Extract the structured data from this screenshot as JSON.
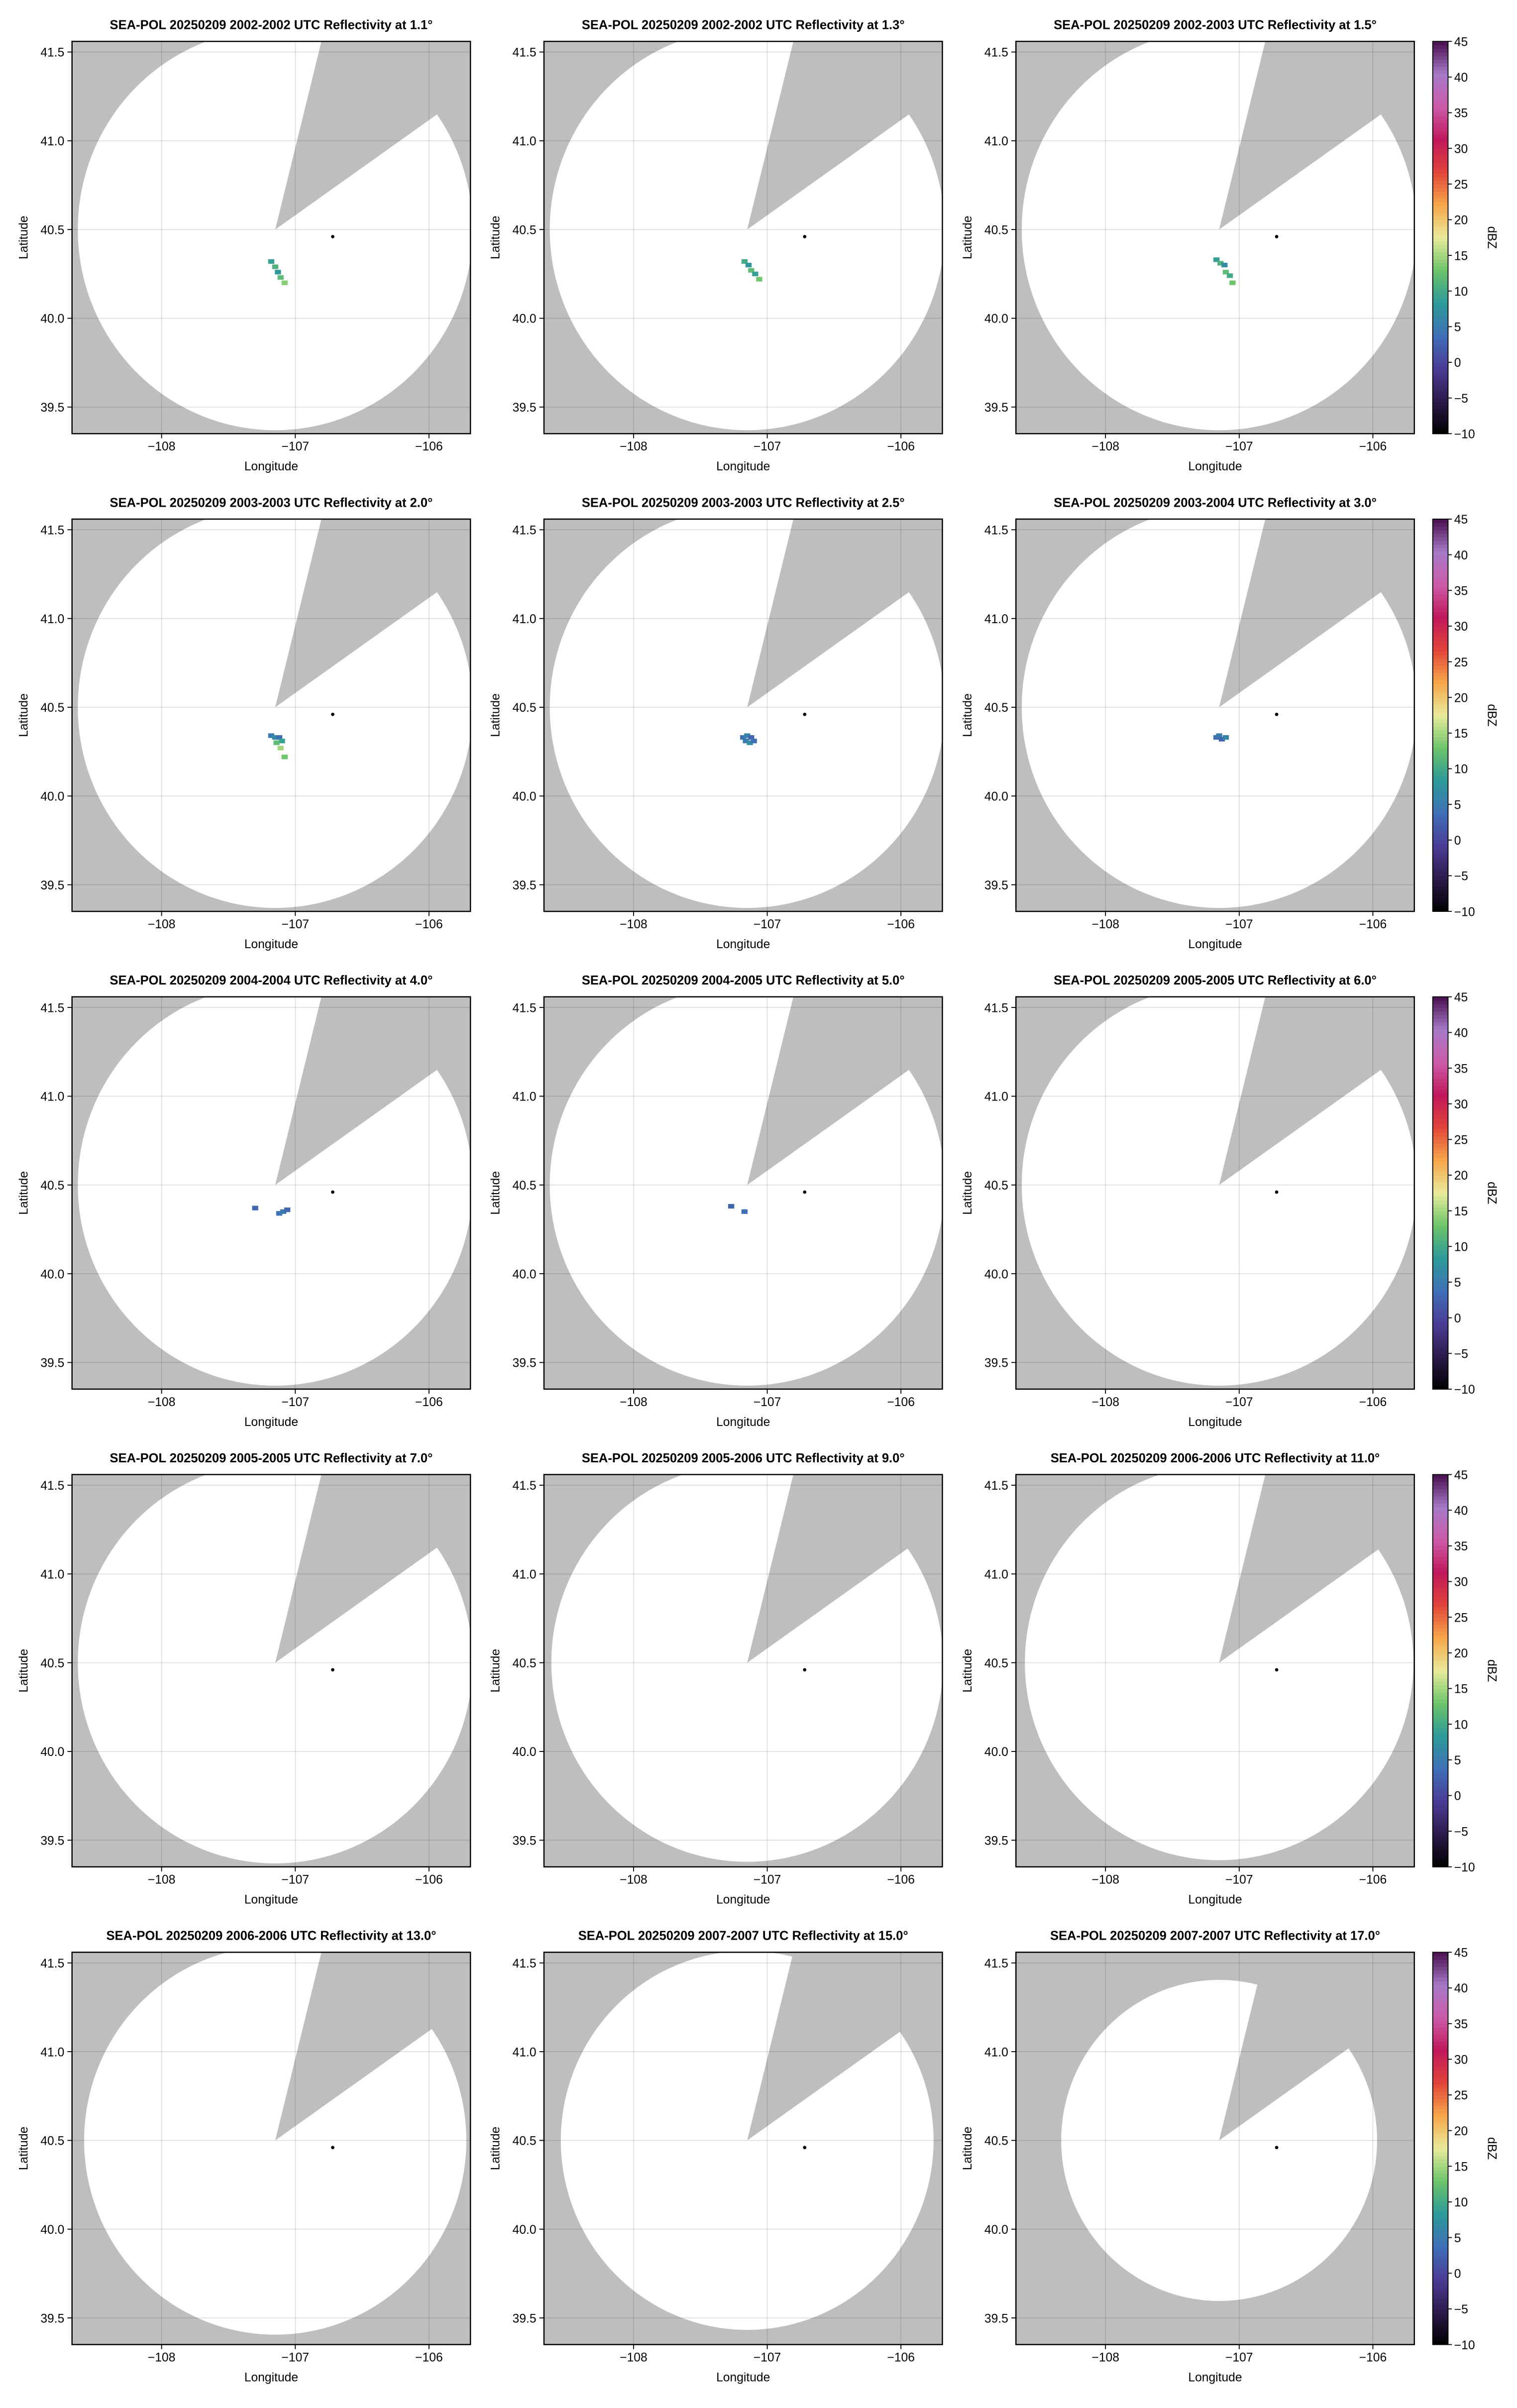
{
  "colorscale": {
    "lim": [
      -10,
      45
    ],
    "colors": [
      "#000000",
      "#2b1a4a",
      "#4b3c96",
      "#3f6fb6",
      "#2c9a9a",
      "#6cc46a",
      "#e8eb9a",
      "#f6a84a",
      "#e2453a",
      "#c0185a",
      "#cc5aa8",
      "#a77ac8",
      "#4a0f4f"
    ]
  },
  "chart_data": [
    {
      "type": "radar_ppi",
      "title": "SEA-POL 20250209 2002-2002 UTC Reflectivity at 1.1°",
      "xlabel": "Longitude",
      "ylabel": "Latitude",
      "xlim": [
        -108.67,
        -105.69
      ],
      "ylim": [
        39.35,
        41.56
      ],
      "xticks": [
        {
          "value": -108,
          "label": "−108"
        },
        {
          "value": -107,
          "label": "−107"
        },
        {
          "value": -106,
          "label": "−106"
        }
      ],
      "yticks": [
        39.5,
        {
          "value": 40,
          "label": "40.0"
        },
        40.5,
        {
          "value": 41,
          "label": "41.0"
        },
        41.5
      ],
      "grid": true,
      "background": "#bebebe",
      "coverage_color": "#ffffff",
      "radar_site": [
        -107.15,
        40.5
      ],
      "max_range_km": 125,
      "blocked_azimuth": [
        14,
        55
      ],
      "marker": [
        -106.72,
        40.46
      ],
      "echo_lon": [
        -107.18,
        -107.15,
        -107.13,
        -107.11,
        -107.08
      ],
      "echo_lat": [
        40.32,
        40.29,
        40.26,
        40.23,
        40.2
      ],
      "echo_dbz": [
        9,
        11,
        8,
        12,
        14
      ]
    },
    {
      "type": "radar_ppi",
      "title": "SEA-POL 20250209 2002-2002 UTC Reflectivity at 1.3°",
      "xlabel": "Longitude",
      "ylabel": "Latitude",
      "xlim": [
        -108.67,
        -105.69
      ],
      "ylim": [
        39.35,
        41.56
      ],
      "xticks": [
        {
          "value": -108,
          "label": "−108"
        },
        {
          "value": -107,
          "label": "−107"
        },
        {
          "value": -106,
          "label": "−106"
        }
      ],
      "yticks": [
        39.5,
        {
          "value": 40,
          "label": "40.0"
        },
        40.5,
        {
          "value": 41,
          "label": "41.0"
        },
        41.5
      ],
      "grid": true,
      "background": "#bebebe",
      "coverage_color": "#ffffff",
      "radar_site": [
        -107.15,
        40.5
      ],
      "max_range_km": 125,
      "blocked_azimuth": [
        14,
        55
      ],
      "marker": [
        -106.72,
        40.46
      ],
      "echo_lon": [
        -107.17,
        -107.14,
        -107.12,
        -107.09,
        -107.06
      ],
      "echo_lat": [
        40.32,
        40.3,
        40.27,
        40.25,
        40.22
      ],
      "echo_dbz": [
        10,
        8,
        12,
        9,
        13
      ]
    },
    {
      "type": "radar_ppi",
      "title": "SEA-POL 20250209 2002-2003 UTC Reflectivity at 1.5°",
      "xlabel": "Longitude",
      "ylabel": "Latitude",
      "xlim": [
        -108.67,
        -105.69
      ],
      "ylim": [
        39.35,
        41.56
      ],
      "xticks": [
        {
          "value": -108,
          "label": "−108"
        },
        {
          "value": -107,
          "label": "−107"
        },
        {
          "value": -106,
          "label": "−106"
        }
      ],
      "yticks": [
        39.5,
        {
          "value": 40,
          "label": "40.0"
        },
        40.5,
        {
          "value": 41,
          "label": "41.0"
        },
        41.5
      ],
      "grid": true,
      "background": "#bebebe",
      "coverage_color": "#ffffff",
      "radar_site": [
        -107.15,
        40.5
      ],
      "max_range_km": 125,
      "blocked_azimuth": [
        14,
        55
      ],
      "marker": [
        -106.72,
        40.46
      ],
      "echo_lon": [
        -107.17,
        -107.14,
        -107.11,
        -107.1,
        -107.07,
        -107.05
      ],
      "echo_lat": [
        40.33,
        40.31,
        40.3,
        40.26,
        40.24,
        40.2
      ],
      "echo_dbz": [
        9,
        11,
        7,
        12,
        10,
        13
      ],
      "colorbar": {
        "label": "dBZ",
        "ticks": [
          {
            "value": -10,
            "label": "−10"
          },
          {
            "value": -5,
            "label": "−5"
          },
          0,
          5,
          10,
          15,
          20,
          25,
          30,
          35,
          40,
          45
        ]
      }
    },
    {
      "type": "radar_ppi",
      "title": "SEA-POL 20250209 2003-2003 UTC Reflectivity at 2.0°",
      "xlabel": "Longitude",
      "ylabel": "Latitude",
      "xlim": [
        -108.67,
        -105.69
      ],
      "ylim": [
        39.35,
        41.56
      ],
      "xticks": [
        {
          "value": -108,
          "label": "−108"
        },
        {
          "value": -107,
          "label": "−107"
        },
        {
          "value": -106,
          "label": "−106"
        }
      ],
      "yticks": [
        39.5,
        {
          "value": 40,
          "label": "40.0"
        },
        40.5,
        {
          "value": 41,
          "label": "41.0"
        },
        41.5
      ],
      "grid": true,
      "background": "#bebebe",
      "coverage_color": "#ffffff",
      "radar_site": [
        -107.15,
        40.5
      ],
      "max_range_km": 125,
      "blocked_azimuth": [
        14,
        55
      ],
      "marker": [
        -106.72,
        40.46
      ],
      "echo_lon": [
        -107.18,
        -107.15,
        -107.12,
        -107.1,
        -107.14,
        -107.11,
        -107.08
      ],
      "echo_lat": [
        40.34,
        40.33,
        40.33,
        40.31,
        40.3,
        40.27,
        40.22
      ],
      "echo_dbz": [
        5,
        7,
        4,
        9,
        12,
        15,
        13
      ]
    },
    {
      "type": "radar_ppi",
      "title": "SEA-POL 20250209 2003-2003 UTC Reflectivity at 2.5°",
      "xlabel": "Longitude",
      "ylabel": "Latitude",
      "xlim": [
        -108.67,
        -105.69
      ],
      "ylim": [
        39.35,
        41.56
      ],
      "xticks": [
        {
          "value": -108,
          "label": "−108"
        },
        {
          "value": -107,
          "label": "−107"
        },
        {
          "value": -106,
          "label": "−106"
        }
      ],
      "yticks": [
        39.5,
        {
          "value": 40,
          "label": "40.0"
        },
        40.5,
        {
          "value": 41,
          "label": "41.0"
        },
        41.5
      ],
      "grid": true,
      "background": "#bebebe",
      "coverage_color": "#ffffff",
      "radar_site": [
        -107.15,
        40.5
      ],
      "max_range_km": 125,
      "blocked_azimuth": [
        14,
        55
      ],
      "marker": [
        -106.72,
        40.46
      ],
      "echo_lon": [
        -107.18,
        -107.15,
        -107.12,
        -107.16,
        -107.13,
        -107.1
      ],
      "echo_lat": [
        40.33,
        40.34,
        40.33,
        40.31,
        40.3,
        40.31
      ],
      "echo_dbz": [
        4,
        6,
        3,
        5,
        7,
        4
      ]
    },
    {
      "type": "radar_ppi",
      "title": "SEA-POL 20250209 2003-2004 UTC Reflectivity at 3.0°",
      "xlabel": "Longitude",
      "ylabel": "Latitude",
      "xlim": [
        -108.67,
        -105.69
      ],
      "ylim": [
        39.35,
        41.56
      ],
      "xticks": [
        {
          "value": -108,
          "label": "−108"
        },
        {
          "value": -107,
          "label": "−107"
        },
        {
          "value": -106,
          "label": "−106"
        }
      ],
      "yticks": [
        39.5,
        {
          "value": 40,
          "label": "40.0"
        },
        40.5,
        {
          "value": 41,
          "label": "41.0"
        },
        41.5
      ],
      "grid": true,
      "background": "#bebebe",
      "coverage_color": "#ffffff",
      "radar_site": [
        -107.15,
        40.5
      ],
      "max_range_km": 125,
      "blocked_azimuth": [
        14,
        55
      ],
      "marker": [
        -106.72,
        40.46
      ],
      "echo_lon": [
        -107.17,
        -107.15,
        -107.13,
        -107.1
      ],
      "echo_lat": [
        40.33,
        40.34,
        40.32,
        40.33
      ],
      "echo_dbz": [
        4,
        5,
        3,
        6
      ],
      "colorbar": {
        "label": "dBZ",
        "ticks": [
          {
            "value": -10,
            "label": "−10"
          },
          {
            "value": -5,
            "label": "−5"
          },
          0,
          5,
          10,
          15,
          20,
          25,
          30,
          35,
          40,
          45
        ]
      }
    },
    {
      "type": "radar_ppi",
      "title": "SEA-POL 20250209 2004-2004 UTC Reflectivity at 4.0°",
      "xlabel": "Longitude",
      "ylabel": "Latitude",
      "xlim": [
        -108.67,
        -105.69
      ],
      "ylim": [
        39.35,
        41.56
      ],
      "xticks": [
        {
          "value": -108,
          "label": "−108"
        },
        {
          "value": -107,
          "label": "−107"
        },
        {
          "value": -106,
          "label": "−106"
        }
      ],
      "yticks": [
        39.5,
        {
          "value": 40,
          "label": "40.0"
        },
        40.5,
        {
          "value": 41,
          "label": "41.0"
        },
        41.5
      ],
      "grid": true,
      "background": "#bebebe",
      "coverage_color": "#ffffff",
      "radar_site": [
        -107.15,
        40.5
      ],
      "max_range_km": 125,
      "blocked_azimuth": [
        14,
        55
      ],
      "marker": [
        -106.72,
        40.46
      ],
      "echo_lon": [
        -107.3,
        -107.12,
        -107.09,
        -107.06
      ],
      "echo_lat": [
        40.37,
        40.34,
        40.35,
        40.36
      ],
      "echo_dbz": [
        3,
        4,
        5,
        3
      ]
    },
    {
      "type": "radar_ppi",
      "title": "SEA-POL 20250209 2004-2005 UTC Reflectivity at 5.0°",
      "xlabel": "Longitude",
      "ylabel": "Latitude",
      "xlim": [
        -108.67,
        -105.69
      ],
      "ylim": [
        39.35,
        41.56
      ],
      "xticks": [
        {
          "value": -108,
          "label": "−108"
        },
        {
          "value": -107,
          "label": "−107"
        },
        {
          "value": -106,
          "label": "−106"
        }
      ],
      "yticks": [
        39.5,
        {
          "value": 40,
          "label": "40.0"
        },
        40.5,
        {
          "value": 41,
          "label": "41.0"
        },
        41.5
      ],
      "grid": true,
      "background": "#bebebe",
      "coverage_color": "#ffffff",
      "radar_site": [
        -107.15,
        40.5
      ],
      "max_range_km": 125,
      "blocked_azimuth": [
        14,
        55
      ],
      "marker": [
        -106.72,
        40.46
      ],
      "echo_lon": [
        -107.27,
        -107.17
      ],
      "echo_lat": [
        40.38,
        40.35
      ],
      "echo_dbz": [
        3,
        4
      ]
    },
    {
      "type": "radar_ppi",
      "title": "SEA-POL 20250209 2005-2005 UTC Reflectivity at 6.0°",
      "xlabel": "Longitude",
      "ylabel": "Latitude",
      "xlim": [
        -108.67,
        -105.69
      ],
      "ylim": [
        39.35,
        41.56
      ],
      "xticks": [
        {
          "value": -108,
          "label": "−108"
        },
        {
          "value": -107,
          "label": "−107"
        },
        {
          "value": -106,
          "label": "−106"
        }
      ],
      "yticks": [
        39.5,
        {
          "value": 40,
          "label": "40.0"
        },
        40.5,
        {
          "value": 41,
          "label": "41.0"
        },
        41.5
      ],
      "grid": true,
      "background": "#bebebe",
      "coverage_color": "#ffffff",
      "radar_site": [
        -107.15,
        40.5
      ],
      "max_range_km": 125,
      "blocked_azimuth": [
        14,
        55
      ],
      "marker": [
        -106.72,
        40.46
      ],
      "colorbar": {
        "label": "dBZ",
        "ticks": [
          {
            "value": -10,
            "label": "−10"
          },
          {
            "value": -5,
            "label": "−5"
          },
          0,
          5,
          10,
          15,
          20,
          25,
          30,
          35,
          40,
          45
        ]
      }
    },
    {
      "type": "radar_ppi",
      "title": "SEA-POL 20250209 2005-2005 UTC Reflectivity at 7.0°",
      "xlabel": "Longitude",
      "ylabel": "Latitude",
      "xlim": [
        -108.67,
        -105.69
      ],
      "ylim": [
        39.35,
        41.56
      ],
      "xticks": [
        {
          "value": -108,
          "label": "−108"
        },
        {
          "value": -107,
          "label": "−107"
        },
        {
          "value": -106,
          "label": "−106"
        }
      ],
      "yticks": [
        39.5,
        {
          "value": 40,
          "label": "40.0"
        },
        40.5,
        {
          "value": 41,
          "label": "41.0"
        },
        41.5
      ],
      "grid": true,
      "background": "#bebebe",
      "coverage_color": "#ffffff",
      "radar_site": [
        -107.15,
        40.5
      ],
      "max_range_km": 125,
      "blocked_azimuth": [
        14,
        55
      ],
      "marker": [
        -106.72,
        40.46
      ]
    },
    {
      "type": "radar_ppi",
      "title": "SEA-POL 20250209 2005-2006 UTC Reflectivity at 9.0°",
      "xlabel": "Longitude",
      "ylabel": "Latitude",
      "xlim": [
        -108.67,
        -105.69
      ],
      "ylim": [
        39.35,
        41.56
      ],
      "xticks": [
        {
          "value": -108,
          "label": "−108"
        },
        {
          "value": -107,
          "label": "−107"
        },
        {
          "value": -106,
          "label": "−106"
        }
      ],
      "yticks": [
        39.5,
        {
          "value": 40,
          "label": "40.0"
        },
        40.5,
        {
          "value": 41,
          "label": "41.0"
        },
        41.5
      ],
      "grid": true,
      "background": "#bebebe",
      "coverage_color": "#ffffff",
      "radar_site": [
        -107.15,
        40.5
      ],
      "max_range_km": 124,
      "blocked_azimuth": [
        14,
        55
      ],
      "marker": [
        -106.72,
        40.46
      ]
    },
    {
      "type": "radar_ppi",
      "title": "SEA-POL 20250209 2006-2006 UTC Reflectivity at 11.0°",
      "xlabel": "Longitude",
      "ylabel": "Latitude",
      "xlim": [
        -108.67,
        -105.69
      ],
      "ylim": [
        39.35,
        41.56
      ],
      "xticks": [
        {
          "value": -108,
          "label": "−108"
        },
        {
          "value": -107,
          "label": "−107"
        },
        {
          "value": -106,
          "label": "−106"
        }
      ],
      "yticks": [
        39.5,
        {
          "value": 40,
          "label": "40.0"
        },
        40.5,
        {
          "value": 41,
          "label": "41.0"
        },
        41.5
      ],
      "grid": true,
      "background": "#bebebe",
      "coverage_color": "#ffffff",
      "radar_site": [
        -107.15,
        40.5
      ],
      "max_range_km": 123,
      "blocked_azimuth": [
        14,
        55
      ],
      "marker": [
        -106.72,
        40.46
      ],
      "colorbar": {
        "label": "dBZ",
        "ticks": [
          {
            "value": -10,
            "label": "−10"
          },
          {
            "value": -5,
            "label": "−5"
          },
          0,
          5,
          10,
          15,
          20,
          25,
          30,
          35,
          40,
          45
        ]
      }
    },
    {
      "type": "radar_ppi",
      "title": "SEA-POL 20250209 2006-2006 UTC Reflectivity at 13.0°",
      "xlabel": "Longitude",
      "ylabel": "Latitude",
      "xlim": [
        -108.67,
        -105.69
      ],
      "ylim": [
        39.35,
        41.56
      ],
      "xticks": [
        {
          "value": -108,
          "label": "−108"
        },
        {
          "value": -107,
          "label": "−107"
        },
        {
          "value": -106,
          "label": "−106"
        }
      ],
      "yticks": [
        39.5,
        {
          "value": 40,
          "label": "40.0"
        },
        40.5,
        {
          "value": 41,
          "label": "41.0"
        },
        41.5
      ],
      "grid": true,
      "background": "#bebebe",
      "coverage_color": "#ffffff",
      "radar_site": [
        -107.15,
        40.5
      ],
      "max_range_km": 121,
      "blocked_azimuth": [
        14,
        55
      ],
      "marker": [
        -106.72,
        40.46
      ]
    },
    {
      "type": "radar_ppi",
      "title": "SEA-POL 20250209 2007-2007 UTC Reflectivity at 15.0°",
      "xlabel": "Longitude",
      "ylabel": "Latitude",
      "xlim": [
        -108.67,
        -105.69
      ],
      "ylim": [
        39.35,
        41.56
      ],
      "xticks": [
        {
          "value": -108,
          "label": "−108"
        },
        {
          "value": -107,
          "label": "−107"
        },
        {
          "value": -106,
          "label": "−106"
        }
      ],
      "yticks": [
        39.5,
        {
          "value": 40,
          "label": "40.0"
        },
        40.5,
        {
          "value": 41,
          "label": "41.0"
        },
        41.5
      ],
      "grid": true,
      "background": "#bebebe",
      "coverage_color": "#ffffff",
      "radar_site": [
        -107.15,
        40.5
      ],
      "max_range_km": 118,
      "blocked_azimuth": [
        14,
        55
      ],
      "marker": [
        -106.72,
        40.46
      ]
    },
    {
      "type": "radar_ppi",
      "title": "SEA-POL 20250209 2007-2007 UTC Reflectivity at 17.0°",
      "xlabel": "Longitude",
      "ylabel": "Latitude",
      "xlim": [
        -108.67,
        -105.69
      ],
      "ylim": [
        39.35,
        41.56
      ],
      "xticks": [
        {
          "value": -108,
          "label": "−108"
        },
        {
          "value": -107,
          "label": "−107"
        },
        {
          "value": -106,
          "label": "−106"
        }
      ],
      "yticks": [
        39.5,
        {
          "value": 40,
          "label": "40.0"
        },
        40.5,
        {
          "value": 41,
          "label": "41.0"
        },
        41.5
      ],
      "grid": true,
      "background": "#bebebe",
      "coverage_color": "#ffffff",
      "radar_site": [
        -107.15,
        40.5
      ],
      "max_range_km": 100,
      "blocked_azimuth": [
        14,
        55
      ],
      "marker": [
        -106.72,
        40.46
      ],
      "colorbar": {
        "label": "dBZ",
        "ticks": [
          {
            "value": -10,
            "label": "−10"
          },
          {
            "value": -5,
            "label": "−5"
          },
          0,
          5,
          10,
          15,
          20,
          25,
          30,
          35,
          40,
          45
        ]
      }
    }
  ]
}
